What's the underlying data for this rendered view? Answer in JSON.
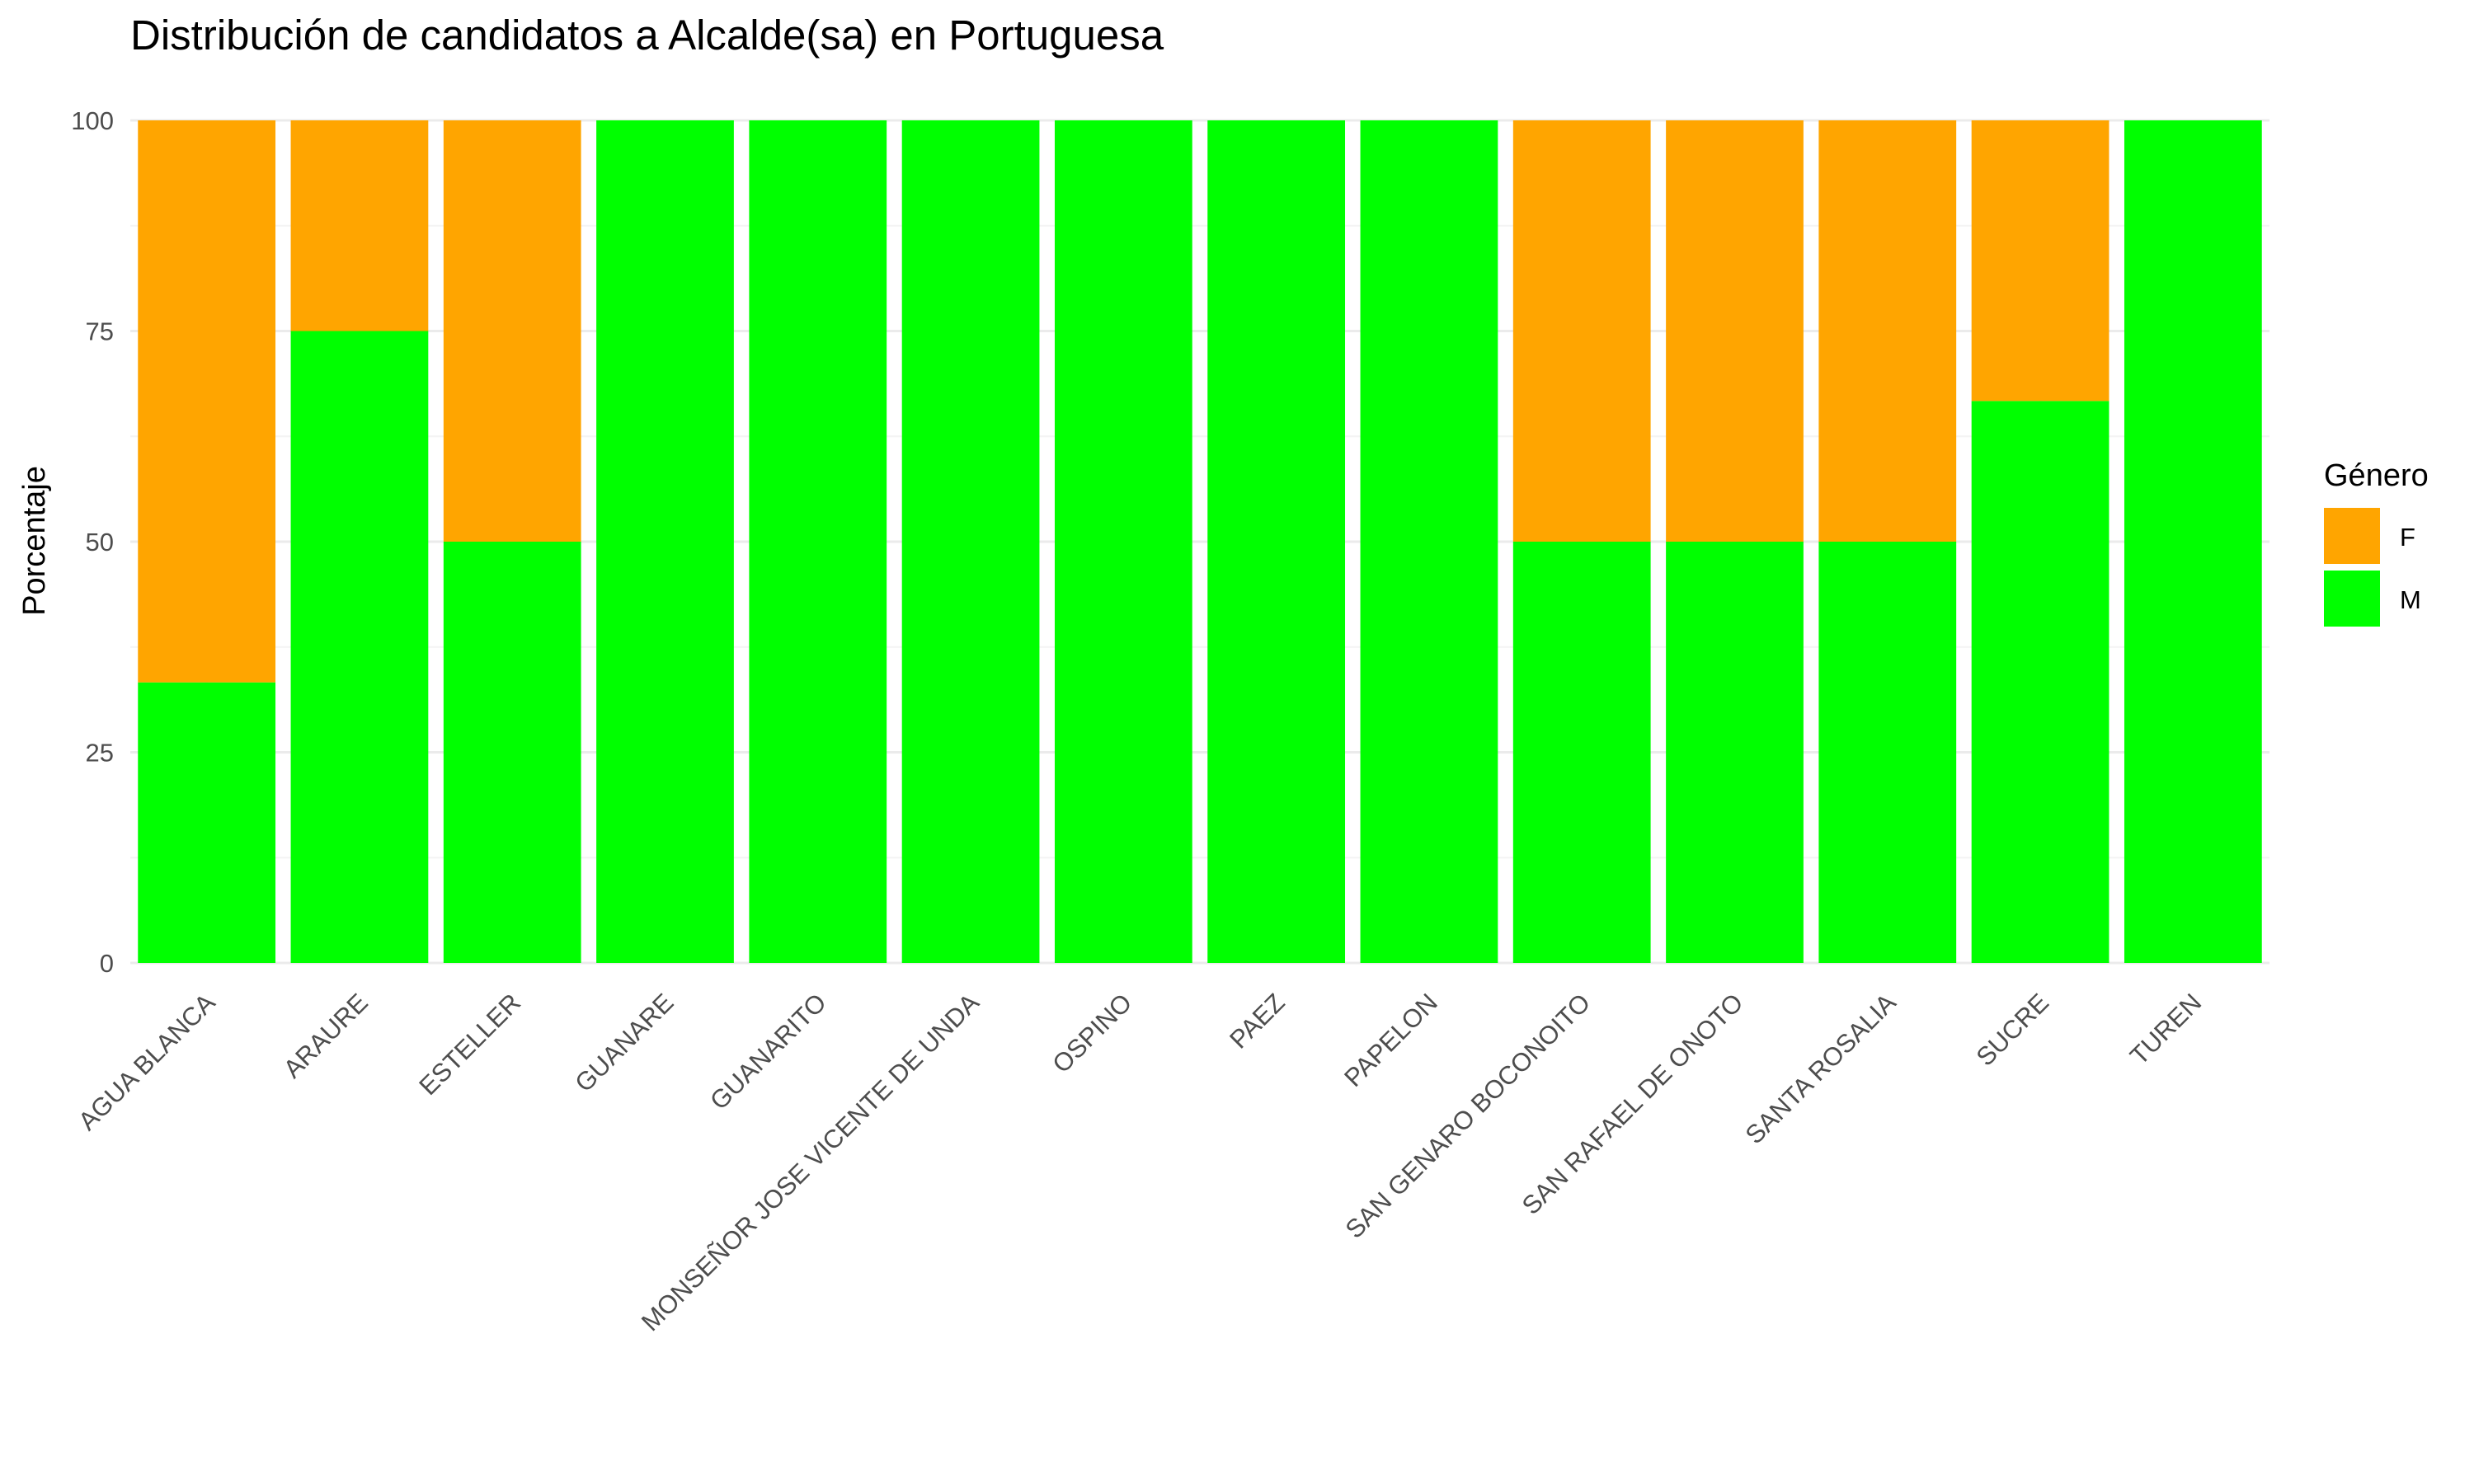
{
  "chart_data": {
    "type": "bar",
    "stacked": true,
    "title": "Distribución de candidatos a Alcalde(sa) en Portuguesa",
    "xlabel": "",
    "ylabel": "Porcentaje",
    "ylim": [
      0,
      100
    ],
    "yticks": [
      0,
      25,
      50,
      75,
      100
    ],
    "grid": true,
    "legend": {
      "title": "Género",
      "position": "right"
    },
    "categories": [
      "AGUA BLANCA",
      "ARAURE",
      "ESTELLER",
      "GUANARE",
      "GUANARITO",
      "MONSEÑOR JOSE VICENTE DE UNDA",
      "OSPINO",
      "PAEZ",
      "PAPELON",
      "SAN GENARO BOCONOITO",
      "SAN RAFAEL DE ONOTO",
      "SANTA ROSALIA",
      "SUCRE",
      "TUREN"
    ],
    "series": [
      {
        "name": "M",
        "color": "#00ff00",
        "values": [
          33.3,
          75,
          50,
          100,
          100,
          100,
          100,
          100,
          100,
          50,
          50,
          50,
          66.7,
          100
        ]
      },
      {
        "name": "F",
        "color": "#ffa500",
        "values": [
          66.7,
          25,
          50,
          0,
          0,
          0,
          0,
          0,
          0,
          50,
          50,
          50,
          33.3,
          0
        ]
      }
    ],
    "legend_order": [
      "F",
      "M"
    ]
  }
}
